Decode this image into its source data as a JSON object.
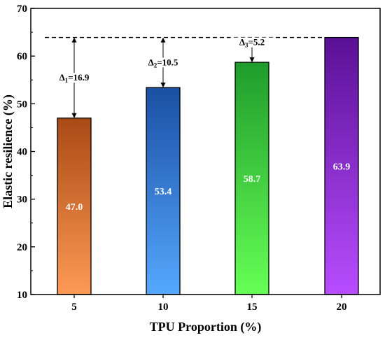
{
  "chart_data": {
    "type": "bar",
    "categories": [
      "5",
      "10",
      "15",
      "20"
    ],
    "values": [
      47.0,
      53.4,
      58.7,
      63.9
    ],
    "value_labels": [
      "47.0",
      "53.4",
      "58.7",
      "63.9"
    ],
    "xlabel": "TPU Proportion (%)",
    "ylabel": "Elastic resilience (%)",
    "ylim": [
      10,
      70
    ],
    "yticks": [
      "10",
      "20",
      "30",
      "40",
      "50",
      "60",
      "70"
    ],
    "reference_line": 63.9,
    "bar_gradients": [
      {
        "top": "#a84a14",
        "bottom": "#ff9a55"
      },
      {
        "top": "#1a4fa3",
        "bottom": "#55a8ff"
      },
      {
        "top": "#1f9c2c",
        "bottom": "#66ff55"
      },
      {
        "top": "#5a1096",
        "bottom": "#b84dff"
      }
    ],
    "annotations": [
      {
        "category": "5",
        "delta": "1",
        "text": "=16.9"
      },
      {
        "category": "10",
        "delta": "2",
        "text": "=10.5"
      },
      {
        "category": "15",
        "delta": "3",
        "text": "=5.2"
      }
    ]
  }
}
